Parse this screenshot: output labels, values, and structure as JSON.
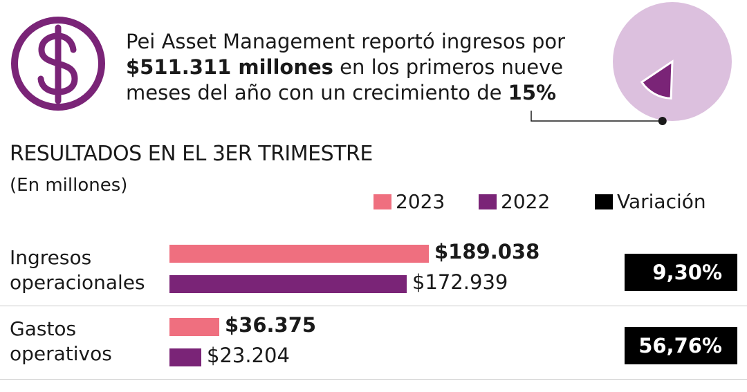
{
  "intro": {
    "part1": "Pei Asset Management reportó ingresos por ",
    "bold1": "$511.311 millones",
    "part2": " en los primeros nueve meses del año con un crecimiento de ",
    "bold2": "15%"
  },
  "icon": "dollar-circle-icon",
  "pie_chart": {
    "type": "pie",
    "slices": [
      {
        "name": "growth",
        "value": 15,
        "color": "#7a2477"
      },
      {
        "name": "rest",
        "value": 85,
        "color": "#dcc0de"
      }
    ]
  },
  "chart_data": {
    "type": "bar",
    "title": "RESULTADOS EN EL 3ER TRIMESTRE",
    "subtitle": "(En millones)",
    "legend": [
      "2023",
      "2022",
      "Variación"
    ],
    "categories": [
      "Ingresos operacionales",
      "Gastos operativos"
    ],
    "category_lines": [
      [
        "Ingresos",
        "operacionales"
      ],
      [
        "Gastos",
        "operativos"
      ]
    ],
    "series": [
      {
        "name": "2023",
        "values": [
          189038,
          36375
        ],
        "labels": [
          "$189.038",
          "$36.375"
        ]
      },
      {
        "name": "2022",
        "values": [
          172939,
          23204
        ],
        "labels": [
          "$172.939",
          "$23.204"
        ]
      }
    ],
    "variation": [
      "9,30%",
      "56,76%"
    ]
  },
  "colors": {
    "c2023": "#ef6f7f",
    "c2022": "#7a2477",
    "variation": "#000000",
    "accent": "#7a2477"
  }
}
